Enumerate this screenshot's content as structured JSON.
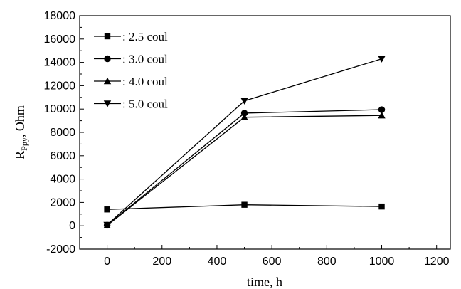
{
  "chart_data": {
    "type": "line",
    "title": "",
    "xlabel": "time, h",
    "ylabel": "R",
    "ylabel_subscript": "Ppy",
    "ylabel_suffix": ", Ohm",
    "xlim": [
      -100,
      1250
    ],
    "ylim": [
      -2000,
      18000
    ],
    "x_ticks": [
      "0",
      "200",
      "400",
      "600",
      "800",
      "1000",
      "1200"
    ],
    "y_ticks": [
      "-2000",
      "0",
      "2000",
      "4000",
      "6000",
      "8000",
      "10000",
      "12000",
      "14000",
      "16000",
      "18000"
    ],
    "grid": false,
    "legend_position": "top-left",
    "series": [
      {
        "name": ": 2.5 coul",
        "marker": "square",
        "x": [
          0,
          500,
          1000
        ],
        "values": [
          1400,
          1800,
          1650
        ]
      },
      {
        "name": ": 3.0 coul",
        "marker": "circle",
        "x": [
          0,
          500,
          1000
        ],
        "values": [
          50,
          9650,
          9950
        ]
      },
      {
        "name": ": 4.0 coul",
        "marker": "triangle-up",
        "x": [
          0,
          500,
          1000
        ],
        "values": [
          30,
          9300,
          9450
        ]
      },
      {
        "name": ": 5.0 coul",
        "marker": "triangle-down",
        "x": [
          0,
          500,
          1000
        ],
        "values": [
          80,
          10700,
          14300
        ]
      }
    ],
    "line_color": "#000000"
  }
}
